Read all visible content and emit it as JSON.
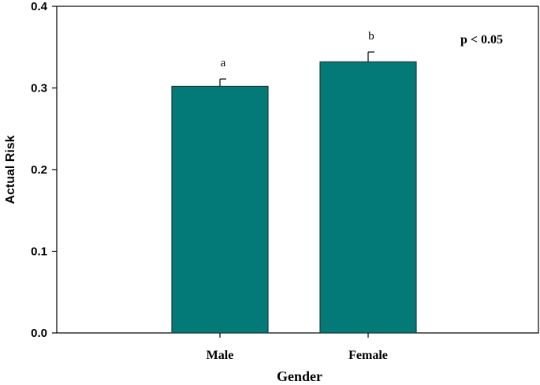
{
  "chart_data": {
    "type": "bar",
    "categories": [
      "Male",
      "Female"
    ],
    "values": [
      0.302,
      0.332
    ],
    "error_upper": [
      0.009,
      0.012
    ],
    "significance_labels": [
      "a",
      "b"
    ],
    "annotation": "p < 0.05",
    "xlabel": "Gender",
    "ylabel": "Actual Risk",
    "ylim": [
      0.0,
      0.4
    ],
    "yticks": [
      "0.0",
      "0.1",
      "0.2",
      "0.3",
      "0.4"
    ],
    "grid": false,
    "bar_color": "#047a78",
    "bar_edge_color": "#1b3a3a"
  }
}
